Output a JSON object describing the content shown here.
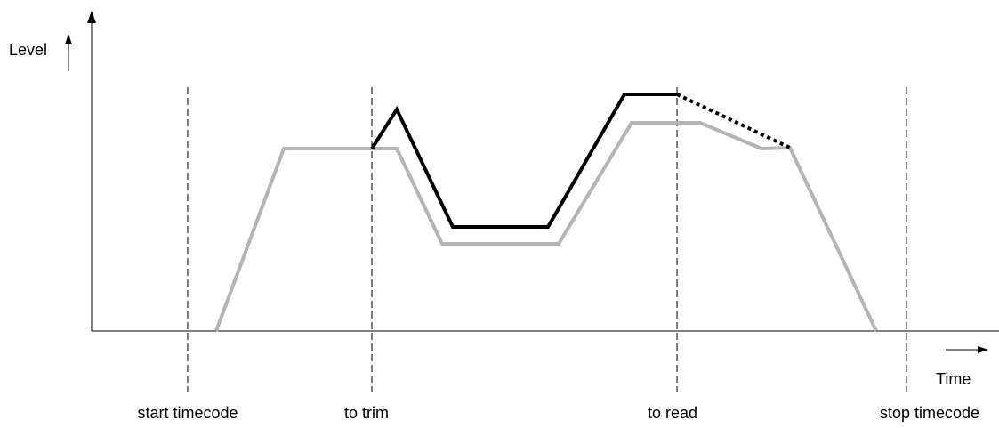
{
  "labels": {
    "y_axis": "Level",
    "x_axis": "Time",
    "markers": [
      "start timecode",
      "to trim",
      "to read",
      "stop timecode"
    ]
  },
  "colors": {
    "axis": "#000000",
    "marker_line": "#000000",
    "original_curve": "#b4b4b4",
    "trimmed_curve": "#000000",
    "background": "#ffffff"
  },
  "curves": {
    "original": {
      "style": "solid"
    },
    "trimmed": {
      "style": "solid"
    },
    "trimmed_continuation": {
      "style": "dotted"
    }
  }
}
